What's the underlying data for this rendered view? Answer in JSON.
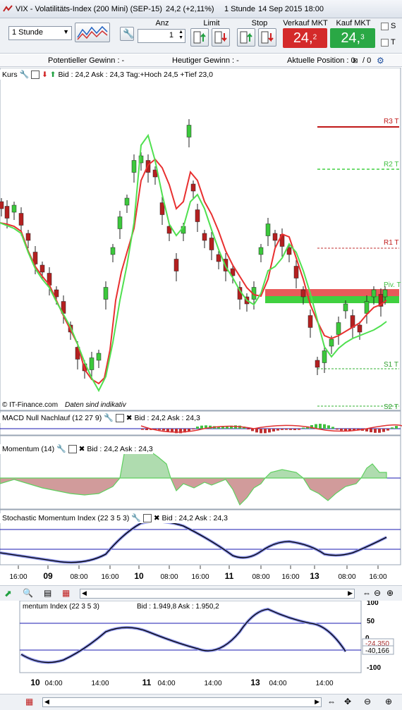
{
  "title": {
    "instrument": "VIX - Volatilitäts-Index (200 Mini) (SEP-15)",
    "change": "24,2 (+2,11%)",
    "interval": "1 Stunde",
    "datetime": "14 Sep 2015 18:00"
  },
  "toolbar": {
    "interval_value": "1 Stunde",
    "anz_label": "Anz",
    "anz_value": "1",
    "limit_label": "Limit",
    "stop_label": "Stop",
    "sell_label": "Verkauf MKT",
    "buy_label": "Kauf MKT",
    "sell_price": "24,",
    "sell_price_sup": "2",
    "buy_price": "24,",
    "buy_price_sup": "3",
    "chk_s": "S",
    "chk_t": "T"
  },
  "info": {
    "potential": "Potentieller Gewinn : -",
    "today": "Heutiger Gewinn : -",
    "position": "Aktuelle Position : 0",
    "position2": "/ 0"
  },
  "panels": {
    "kurs_label": "Kurs",
    "kurs_quote": "Bid : 24,2 Ask : 24,3 Tag:+Hoch 24,5 +Tief 23,0",
    "copyright": "© IT-Finance.com",
    "indicative": "Daten sind indikativ",
    "macd_label": "MACD Null Nachlauf (12 27 9)",
    "macd_quote": "Bid : 24,2 Ask : 24,3",
    "mom_label": "Momentum (14)",
    "mom_quote": "Bid : 24,2 Ask : 24,3",
    "smi_label": "Stochastic Momentum Index (22 3 5 3)",
    "smi_quote": "Bid : 24,2 Ask : 24,3",
    "lower_label": "mentum Index (22 3 5 3)",
    "lower_quote": "Bid : 1.949,8 Ask : 1.950,2"
  },
  "levels": {
    "r3": "R3 T",
    "r2": "R2 T",
    "r1": "R1 T",
    "piv": "Piv. T",
    "s1": "S1 T",
    "s2": "S2 T"
  },
  "xaxis": [
    "16:00",
    "09",
    "08:00",
    "16:00",
    "10",
    "08:00",
    "16:00",
    "11",
    "08:00",
    "16:00",
    "13",
    "08:00",
    "16:00"
  ],
  "lower_xaxis": [
    "10",
    "04:00",
    "14:00",
    "11",
    "04:00",
    "14:00",
    "13",
    "04:00",
    "14:00"
  ],
  "lower_yaxis": [
    "100",
    "50",
    "0",
    "-100"
  ],
  "lower_values": [
    "-24,350",
    "-40,166"
  ],
  "colors": {
    "sell": "#d42a2a",
    "buy": "#2aa845",
    "up_candle": "#3cc83c",
    "down_candle": "#b42020",
    "ma_red": "#e83030",
    "ma_green": "#50e050"
  }
}
